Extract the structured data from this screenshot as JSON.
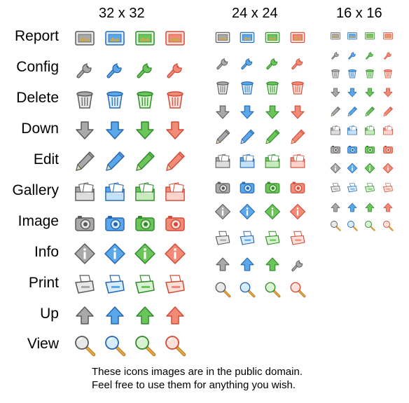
{
  "headers": {
    "s32": "32 x 32",
    "s24": "24 x 24",
    "s16": "16 x 16"
  },
  "rows": [
    "Report",
    "Config",
    "Delete",
    "Down",
    "Edit",
    "Gallery",
    "Image",
    "Info",
    "Print",
    "Up",
    "View"
  ],
  "columns": {
    "s24": [
      "Report",
      "Config",
      "Delete",
      "Down",
      "Edit",
      "Gallery",
      "Image",
      "Info",
      "Print",
      "Up"
    ],
    "s16": [
      "Report",
      "Config",
      "Delete",
      "Down",
      "Edit",
      "Gallery",
      "Image",
      "Info",
      "Print",
      "Up",
      "View"
    ]
  },
  "extra24": {
    "row": 10,
    "items": [
      "Up",
      "Up",
      "Up",
      "Config"
    ]
  },
  "view24": {
    "row": 11,
    "items": [
      "View",
      "View",
      "View",
      "View"
    ]
  },
  "palette": [
    {
      "name": "gray",
      "light": "#e8e8e8",
      "mid": "#a9a9a9",
      "dark": "#5a5a5a"
    },
    {
      "name": "blue",
      "light": "#d6ecfb",
      "mid": "#5aa8ea",
      "dark": "#2566b0"
    },
    {
      "name": "green",
      "light": "#d9f2d0",
      "mid": "#6cc55a",
      "dark": "#2f8a2a"
    },
    {
      "name": "red",
      "light": "#fde0da",
      "mid": "#f28a78",
      "dark": "#d24a36"
    }
  ],
  "footer": {
    "line1": "These icons images are in the public domain.",
    "line2": "Feel free to use them for anything you wish."
  }
}
